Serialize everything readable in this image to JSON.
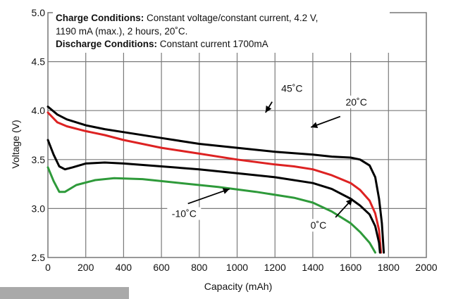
{
  "conditions": {
    "charge_title": "Charge Conditions:",
    "charge_text_line1": " Constant voltage/constant current, 4.2 V,",
    "charge_text_line2": "1190 mA (max.), 2 hours, 20˚C.",
    "discharge_title": "Discharge Conditions:",
    "discharge_text": " Constant current 1700mA"
  },
  "chart_data": {
    "type": "line",
    "title": "",
    "xlabel": "Capacity (mAh)",
    "ylabel": "Voltage (V)",
    "xlim": [
      0,
      2000
    ],
    "ylim": [
      2.5,
      5.0
    ],
    "xticks": [
      "0",
      "200",
      "400",
      "600",
      "800",
      "1000",
      "1200",
      "1400",
      "1600",
      "1800",
      "2000"
    ],
    "yticks": [
      "2.5",
      "3.0",
      "3.5",
      "4.0",
      "4.5",
      "5.0"
    ],
    "grid": true,
    "series": [
      {
        "name": "45˚C",
        "color": "#000000",
        "points": [
          [
            0,
            4.04
          ],
          [
            50,
            3.96
          ],
          [
            100,
            3.91
          ],
          [
            200,
            3.85
          ],
          [
            300,
            3.81
          ],
          [
            400,
            3.78
          ],
          [
            600,
            3.72
          ],
          [
            800,
            3.66
          ],
          [
            1000,
            3.62
          ],
          [
            1200,
            3.58
          ],
          [
            1400,
            3.55
          ],
          [
            1500,
            3.53
          ],
          [
            1600,
            3.52
          ],
          [
            1650,
            3.5
          ],
          [
            1700,
            3.44
          ],
          [
            1730,
            3.32
          ],
          [
            1750,
            3.1
          ],
          [
            1765,
            2.85
          ],
          [
            1775,
            2.55
          ]
        ]
      },
      {
        "name": "20˚C",
        "color": "#dd2222",
        "points": [
          [
            0,
            3.98
          ],
          [
            50,
            3.88
          ],
          [
            100,
            3.84
          ],
          [
            200,
            3.79
          ],
          [
            300,
            3.75
          ],
          [
            400,
            3.7
          ],
          [
            600,
            3.62
          ],
          [
            800,
            3.56
          ],
          [
            1000,
            3.5
          ],
          [
            1200,
            3.45
          ],
          [
            1300,
            3.43
          ],
          [
            1400,
            3.4
          ],
          [
            1500,
            3.34
          ],
          [
            1600,
            3.26
          ],
          [
            1650,
            3.19
          ],
          [
            1700,
            3.08
          ],
          [
            1730,
            2.95
          ],
          [
            1750,
            2.78
          ],
          [
            1760,
            2.55
          ]
        ]
      },
      {
        "name": "0˚C",
        "color": "#000000",
        "points": [
          [
            0,
            3.7
          ],
          [
            30,
            3.55
          ],
          [
            60,
            3.43
          ],
          [
            90,
            3.4
          ],
          [
            130,
            3.42
          ],
          [
            200,
            3.46
          ],
          [
            300,
            3.47
          ],
          [
            400,
            3.46
          ],
          [
            600,
            3.43
          ],
          [
            800,
            3.4
          ],
          [
            1000,
            3.36
          ],
          [
            1200,
            3.32
          ],
          [
            1400,
            3.26
          ],
          [
            1500,
            3.2
          ],
          [
            1600,
            3.1
          ],
          [
            1650,
            3.03
          ],
          [
            1700,
            2.94
          ],
          [
            1730,
            2.82
          ],
          [
            1750,
            2.65
          ],
          [
            1755,
            2.55
          ]
        ]
      },
      {
        "name": "-10˚C",
        "color": "#2e9a3a",
        "points": [
          [
            0,
            3.42
          ],
          [
            30,
            3.28
          ],
          [
            60,
            3.17
          ],
          [
            90,
            3.17
          ],
          [
            150,
            3.24
          ],
          [
            250,
            3.29
          ],
          [
            350,
            3.31
          ],
          [
            500,
            3.3
          ],
          [
            700,
            3.26
          ],
          [
            900,
            3.22
          ],
          [
            1100,
            3.17
          ],
          [
            1300,
            3.11
          ],
          [
            1400,
            3.06
          ],
          [
            1500,
            2.97
          ],
          [
            1600,
            2.85
          ],
          [
            1650,
            2.76
          ],
          [
            1700,
            2.65
          ],
          [
            1730,
            2.55
          ]
        ]
      }
    ],
    "annotations": [
      {
        "text": "45˚C",
        "tx": 1290,
        "ty": 4.2,
        "ax": 1185,
        "ay": 4.09,
        "hx": 1150,
        "hy": 3.98
      },
      {
        "text": "20˚C",
        "tx": 1630,
        "ty": 4.06,
        "ax": 1545,
        "ay": 3.94,
        "hx": 1390,
        "hy": 3.83
      },
      {
        "text": "0˚C",
        "tx": 1430,
        "ty": 2.8,
        "ax": 1520,
        "ay": 2.91,
        "hx": 1610,
        "hy": 3.1
      },
      {
        "text": "-10˚C",
        "tx": 720,
        "ty": 2.92,
        "ax": 740,
        "ay": 3.05,
        "hx": 960,
        "hy": 3.2
      }
    ]
  }
}
